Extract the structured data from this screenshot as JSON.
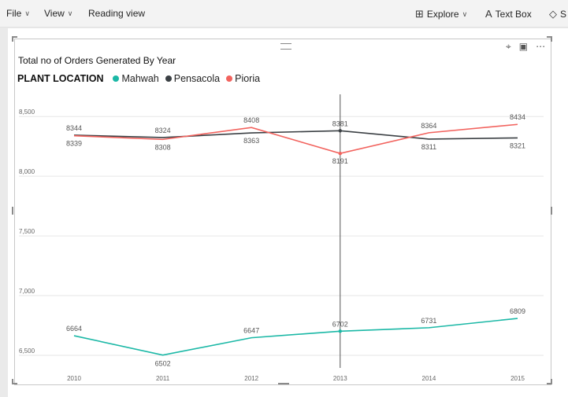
{
  "toolbar": {
    "file": "File",
    "view": "View",
    "reading_view": "Reading view",
    "explore": "Explore",
    "text_box": "Text Box",
    "shapes_partial": "S"
  },
  "visual": {
    "title": "Total no of Orders Generated By Year",
    "legend_title": "PLANT LOCATION"
  },
  "colors": {
    "Mahwah": "#1bb8a6",
    "Pensacola": "#3b4044",
    "Pioria": "#f2635e",
    "crosshair": "#555555",
    "grid": "#e6e6e6"
  },
  "icons": [
    "chevron-down-icon",
    "explore-icon",
    "text-box-icon",
    "shapes-icon",
    "pin-icon",
    "focus-mode-icon",
    "more-options-icon",
    "drag-grip-icon"
  ],
  "chart_data": {
    "type": "line",
    "title": "Total no of Orders Generated By Year",
    "xlabel": "",
    "ylabel": "",
    "x": [
      "2010",
      "2011",
      "2012",
      "2013",
      "2014",
      "2015"
    ],
    "ylim": [
      6480,
      8620
    ],
    "yticks": [
      6500,
      7000,
      7500,
      8000,
      8500
    ],
    "ytick_labels": [
      "6,500",
      "7,000",
      "7,500",
      "8,000",
      "8,500"
    ],
    "legend_position": "top-left",
    "grid": true,
    "crosshair_at": "2013",
    "series": [
      {
        "name": "Mahwah",
        "values": [
          6664,
          6502,
          6647,
          6702,
          6731,
          6809
        ]
      },
      {
        "name": "Pensacola",
        "values": [
          8344,
          8324,
          8363,
          8381,
          8311,
          8321
        ]
      },
      {
        "name": "Pioria",
        "values": [
          8339,
          8308,
          8408,
          8191,
          8364,
          8434
        ]
      }
    ]
  }
}
